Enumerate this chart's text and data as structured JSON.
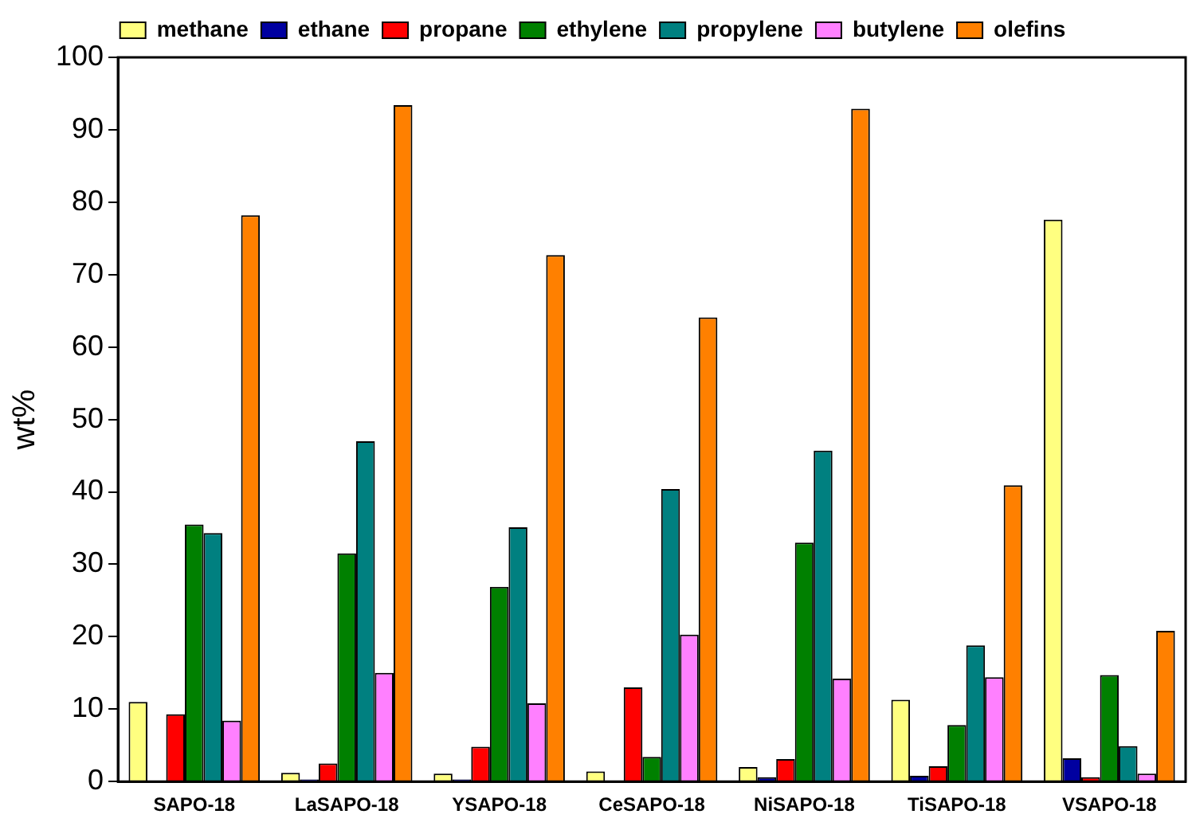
{
  "chart_data": {
    "type": "bar",
    "ylabel": "wt%",
    "categories": [
      "SAPO-18",
      "LaSAPO-18",
      "YSAPO-18",
      "CeSAPO-18",
      "NiSAPO-18",
      "TiSAPO-18",
      "VSAPO-18"
    ],
    "series": [
      {
        "name": "methane",
        "color": "#ffff80",
        "values": [
          11,
          1.2,
          1.1,
          1.4,
          2,
          11.3,
          77.6
        ]
      },
      {
        "name": "ethane",
        "color": "#0000a0",
        "values": [
          0,
          0.3,
          0.3,
          0,
          0.6,
          0.8,
          3.2
        ]
      },
      {
        "name": "propane",
        "color": "#ff0000",
        "values": [
          9.3,
          2.5,
          4.8,
          13,
          3.1,
          2.1,
          0.6
        ]
      },
      {
        "name": "ethylene",
        "color": "#008000",
        "values": [
          35.5,
          31.5,
          26.9,
          3.4,
          33,
          7.8,
          14.7
        ]
      },
      {
        "name": "propylene",
        "color": "#008080",
        "values": [
          34.3,
          47,
          35.1,
          40.4,
          45.7,
          18.8,
          4.9
        ]
      },
      {
        "name": "butylene",
        "color": "#ff80ff",
        "values": [
          8.4,
          15,
          10.8,
          20.3,
          14.2,
          14.4,
          1.1
        ]
      },
      {
        "name": "olefins",
        "color": "#ff8000",
        "values": [
          78.2,
          93.4,
          72.7,
          64.1,
          92.9,
          40.9,
          20.8
        ]
      }
    ],
    "ylim": [
      0,
      100
    ],
    "yticks": [
      0,
      10,
      20,
      30,
      40,
      50,
      60,
      70,
      80,
      90,
      100
    ],
    "grid": false,
    "legend": "top"
  }
}
